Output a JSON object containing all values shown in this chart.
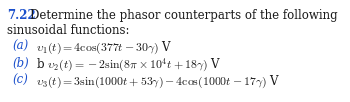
{
  "background_color": "#ffffff",
  "text_color": "#1a1a1a",
  "label_color": "#1a4fcc",
  "fs": 8.5,
  "fig_w": 3.5,
  "fig_h": 1.02,
  "dpi": 100,
  "header_number": "7.22",
  "header_rest": "  Determine the phasor counterparts of the following",
  "header_line2": "sinusoidal functions:",
  "items": [
    {
      "label": "(a)",
      "text": " $\\upsilon_1(t) = 4\\cos(377t - 30°)$ V"
    },
    {
      "label": "(b)",
      "text": " b $\\upsilon_2(t) = -2\\sin(8\\pi \\times 10^4t + 18°)$ V"
    },
    {
      "label": "(c)",
      "text": " $\\upsilon_3(t) = 3\\sin(1000t + 53°) - 4\\cos(1000t - 17°)$ V"
    }
  ]
}
